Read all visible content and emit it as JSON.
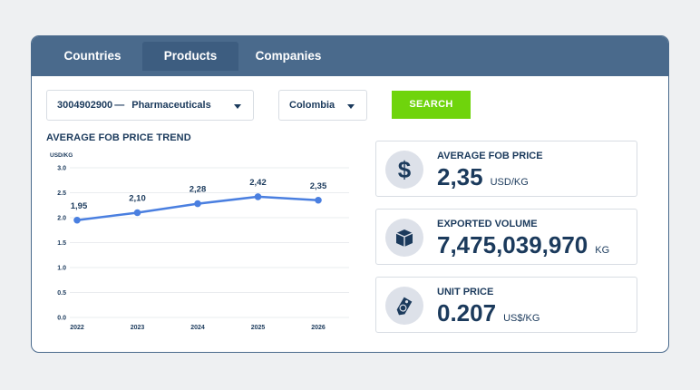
{
  "tabs": [
    {
      "label": "Countries",
      "active": false
    },
    {
      "label": "Products",
      "active": true
    },
    {
      "label": "Companies",
      "active": false
    }
  ],
  "filters": {
    "product_code": "3004902900",
    "product_sep": "—",
    "product_name": "Pharmaceuticals",
    "country": "Colombia",
    "search_label": "SEARCH"
  },
  "chart_title": "AVERAGE FOB PRICE TREND",
  "chart_data": {
    "type": "line",
    "ylabel": "USD/KG",
    "ylim": [
      0,
      3.0
    ],
    "yticks": [
      "0.0",
      "0.5",
      "1.0",
      "1.5",
      "2.0",
      "2.5",
      "3.0"
    ],
    "categories": [
      "2022",
      "2023",
      "2024",
      "2025",
      "2026"
    ],
    "values": [
      1.95,
      2.1,
      2.28,
      2.42,
      2.35
    ],
    "data_labels": [
      "1,95",
      "2,10",
      "2,28",
      "2,42",
      "2,35"
    ],
    "grid": true,
    "color": "#4a7fe0"
  },
  "stats": [
    {
      "icon": "dollar-icon",
      "label": "AVERAGE FOB PRICE",
      "value": "2,35",
      "unit": "USD/KG"
    },
    {
      "icon": "box-icon",
      "label": "EXPORTED VOLUME",
      "value": "7,475,039,970",
      "unit": "KG"
    },
    {
      "icon": "price-tag-icon",
      "label": "UNIT PRICE",
      "value": "0.207",
      "unit": "US$/KG"
    }
  ],
  "colors": {
    "header": "#4a6a8c",
    "accent": "#6fd40c",
    "line": "#4a7fe0",
    "text": "#1b3a5c"
  }
}
